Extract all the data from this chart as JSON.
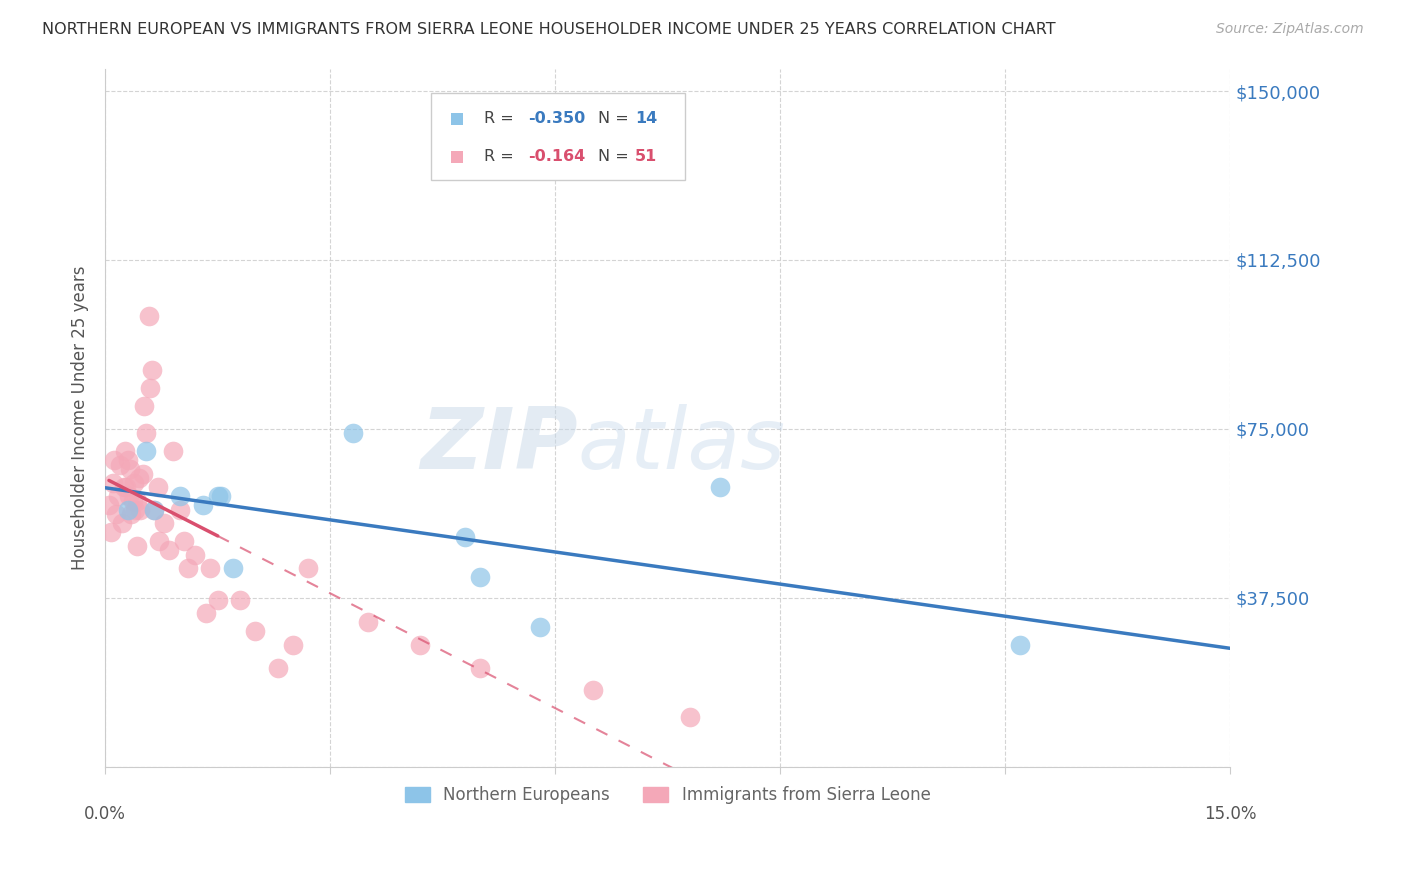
{
  "title": "NORTHERN EUROPEAN VS IMMIGRANTS FROM SIERRA LEONE HOUSEHOLDER INCOME UNDER 25 YEARS CORRELATION CHART",
  "source": "Source: ZipAtlas.com",
  "ylabel": "Householder Income Under 25 years",
  "yticks": [
    0,
    37500,
    75000,
    112500,
    150000
  ],
  "ytick_labels": [
    "",
    "$37,500",
    "$75,000",
    "$112,500",
    "$150,000"
  ],
  "xlim": [
    0.0,
    15.0
  ],
  "ylim": [
    0,
    155000
  ],
  "blue_color": "#8dc4e8",
  "pink_color": "#f4a8b8",
  "blue_line_color": "#3a7abf",
  "pink_line_color": "#d94f6e",
  "watermark_zip": "ZIP",
  "watermark_atlas": "atlas",
  "blue_x": [
    0.3,
    0.55,
    0.65,
    1.0,
    1.3,
    1.5,
    1.55,
    3.3,
    4.8,
    5.0,
    5.8,
    12.2,
    8.2,
    1.7
  ],
  "blue_y": [
    57000,
    70000,
    57000,
    60000,
    58000,
    60000,
    60000,
    74000,
    51000,
    42000,
    31000,
    27000,
    62000,
    44000
  ],
  "pink_x": [
    0.05,
    0.08,
    0.1,
    0.12,
    0.15,
    0.17,
    0.2,
    0.22,
    0.25,
    0.27,
    0.28,
    0.3,
    0.32,
    0.33,
    0.35,
    0.37,
    0.38,
    0.4,
    0.42,
    0.43,
    0.45,
    0.47,
    0.5,
    0.52,
    0.55,
    0.58,
    0.6,
    0.62,
    0.65,
    0.7,
    0.72,
    0.78,
    0.85,
    0.9,
    1.0,
    1.05,
    1.1,
    1.2,
    1.35,
    1.4,
    1.5,
    1.8,
    2.0,
    2.3,
    2.5,
    2.7,
    3.5,
    4.2,
    5.0,
    6.5,
    7.8
  ],
  "pink_y": [
    58000,
    52000,
    63000,
    68000,
    56000,
    60000,
    67000,
    54000,
    62000,
    70000,
    62000,
    68000,
    60000,
    66000,
    56000,
    59000,
    63000,
    57000,
    49000,
    59000,
    64000,
    57000,
    65000,
    80000,
    74000,
    100000,
    84000,
    88000,
    57000,
    62000,
    50000,
    54000,
    48000,
    70000,
    57000,
    50000,
    44000,
    47000,
    34000,
    44000,
    37000,
    37000,
    30000,
    22000,
    27000,
    44000,
    32000,
    27000,
    22000,
    17000,
    11000
  ],
  "legend_blue_r": "-0.350",
  "legend_blue_n": "14",
  "legend_pink_r": "-0.164",
  "legend_pink_n": "51"
}
